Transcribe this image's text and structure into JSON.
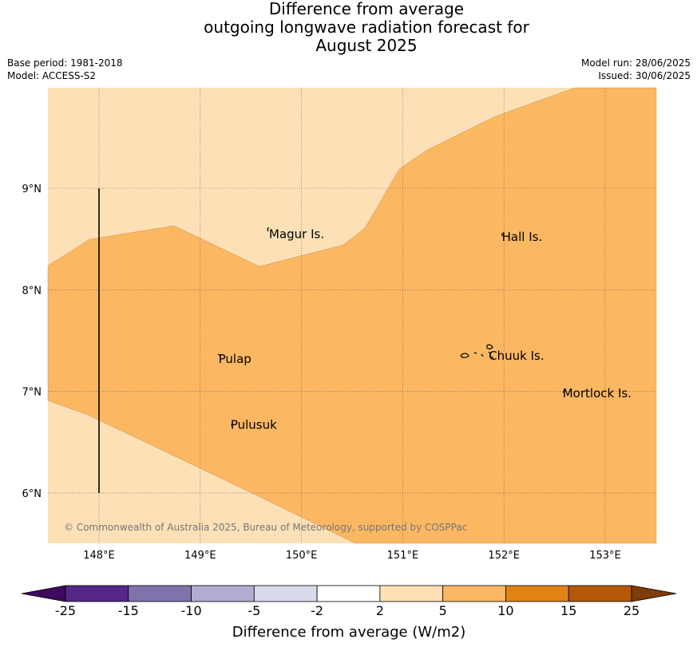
{
  "header": {
    "title_lines": [
      "Difference from average",
      "outgoing longwave radiation forecast for",
      "August 2025"
    ],
    "base_period": "Base period: 1981-2018",
    "model": "Model: ACCESS-S2",
    "model_run": "Model run: 28/06/2025",
    "issued": "Issued: 30/06/2025"
  },
  "map": {
    "lon_ticks": [
      "148°E",
      "149°E",
      "150°E",
      "151°E",
      "152°E",
      "153°E"
    ],
    "lat_ticks": [
      "9°N",
      "8°N",
      "7°N",
      "6°N"
    ],
    "places": [
      {
        "name": "Magur Is.",
        "lon": 149.68,
        "lat": 8.55
      },
      {
        "name": "Hall Is.",
        "lon": 151.98,
        "lat": 8.52
      },
      {
        "name": "Pulap",
        "lon": 149.18,
        "lat": 7.32
      },
      {
        "name": "Chuuk Is.",
        "lon": 151.85,
        "lat": 7.35
      },
      {
        "name": "Mortlock Is.",
        "lon": 152.58,
        "lat": 6.98
      },
      {
        "name": "Pulusuk",
        "lon": 149.3,
        "lat": 6.67
      }
    ],
    "copyright": "© Commonwealth of Australia 2025, Bureau of Meteorology, supported by COSPPac",
    "colors": {
      "band_2_5": "#fde0b6",
      "band_5_10": "#fbb762",
      "grid": "#555555",
      "coast": "#000000"
    }
  },
  "colorbar": {
    "label": "Difference from average (W/m2)",
    "ticks": [
      "-25",
      "-15",
      "-10",
      "-5",
      "-2",
      "2",
      "5",
      "10",
      "15",
      "25"
    ],
    "colors": [
      "#3f0a5e",
      "#542788",
      "#8073ac",
      "#b2abd2",
      "#d8daeb",
      "#ffffff",
      "#fde0b6",
      "#fbb762",
      "#e08214",
      "#b35806",
      "#7f3b08"
    ]
  }
}
